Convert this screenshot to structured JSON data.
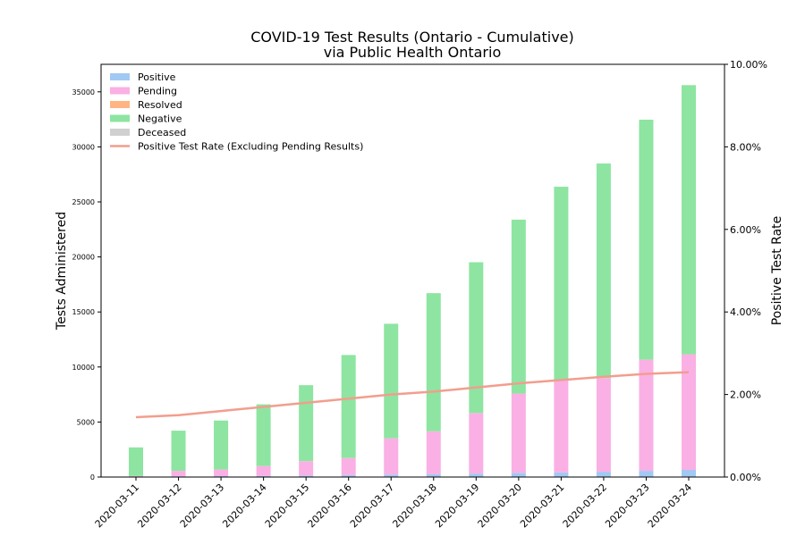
{
  "chart_data": {
    "type": "bar",
    "title": "COVID-19 Test Results (Ontario - Cumulative)",
    "subtitle": "via Public Health Ontario",
    "ylabel": "Tests Administered",
    "y2label": "Positive Test Rate",
    "categories": [
      "2020-03-11",
      "2020-03-12",
      "2020-03-13",
      "2020-03-14",
      "2020-03-15",
      "2020-03-16",
      "2020-03-17",
      "2020-03-18",
      "2020-03-19",
      "2020-03-20",
      "2020-03-21",
      "2020-03-22",
      "2020-03-23",
      "2020-03-24"
    ],
    "ylim": [
      0,
      37500
    ],
    "yticks": [
      0,
      5000,
      10000,
      15000,
      20000,
      25000,
      30000,
      35000
    ],
    "y2lim": [
      0,
      10
    ],
    "y2ticks": [
      0,
      2,
      4,
      6,
      8,
      10
    ],
    "y2tick_labels": [
      "0.00%",
      "2.00%",
      "4.00%",
      "6.00%",
      "8.00%",
      "10.00%"
    ],
    "stacked": true,
    "series": [
      {
        "name": "Positive",
        "color": "#a1c9f4",
        "values": [
          40,
          60,
          80,
          100,
          140,
          180,
          220,
          250,
          310,
          380,
          420,
          480,
          560,
          650
        ]
      },
      {
        "name": "Pending",
        "color": "#fab0e4",
        "values": [
          50,
          500,
          600,
          900,
          1300,
          1550,
          3300,
          3900,
          5500,
          7200,
          8400,
          8500,
          10100,
          10500
        ]
      },
      {
        "name": "Resolved",
        "color": "#ffb482",
        "values": [
          3,
          4,
          5,
          6,
          8,
          8,
          8,
          8,
          8,
          8,
          8,
          8,
          8,
          8
        ]
      },
      {
        "name": "Negative",
        "color": "#8de5a1",
        "values": [
          2600,
          3650,
          4450,
          5600,
          6900,
          9350,
          10400,
          12550,
          13700,
          15800,
          17550,
          19500,
          21800,
          24450
        ]
      },
      {
        "name": "Deceased",
        "color": "#d0d0d0",
        "values": [
          0,
          0,
          0,
          0,
          0,
          0,
          0,
          1,
          1,
          1,
          1,
          1,
          2,
          3
        ]
      }
    ],
    "line": {
      "name": "Positive Test Rate (Excluding Pending Results)",
      "color": "#f29e8e",
      "values": [
        1.45,
        1.5,
        1.6,
        1.7,
        1.8,
        1.9,
        2.0,
        2.07,
        2.17,
        2.27,
        2.35,
        2.43,
        2.5,
        2.54
      ]
    },
    "legend_position": "top-left",
    "grid": false
  }
}
